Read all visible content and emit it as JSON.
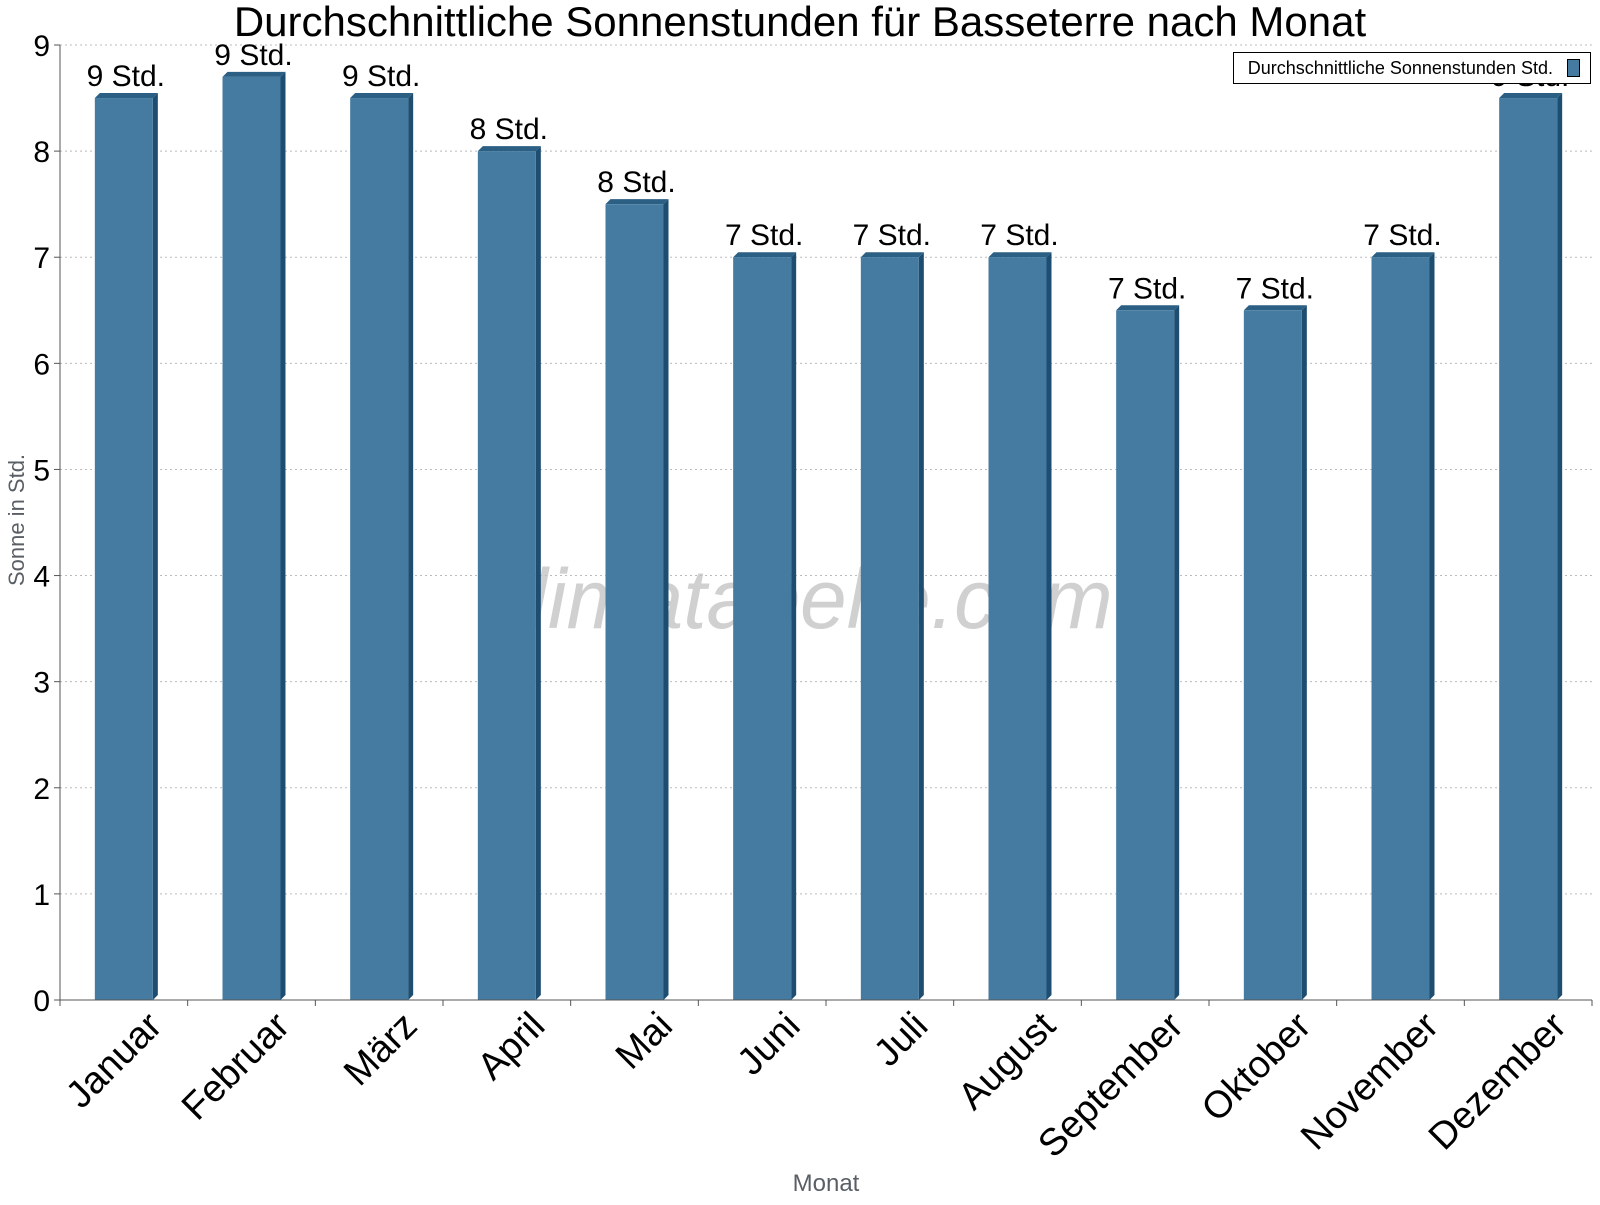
{
  "chart_data": {
    "type": "bar",
    "title": "Durchschnittliche Sonnenstunden für Basseterre nach Monat",
    "xlabel": "Monat",
    "ylabel": "Sonne in Std.",
    "categories": [
      "Januar",
      "Februar",
      "März",
      "April",
      "Mai",
      "Juni",
      "Juli",
      "August",
      "September",
      "Oktober",
      "November",
      "Dezember"
    ],
    "series": [
      {
        "name": "Durchschnittliche Sonnenstunden Std.",
        "values": [
          8.5,
          8.7,
          8.5,
          8.0,
          7.5,
          7.0,
          7.0,
          7.0,
          6.5,
          6.5,
          7.0,
          8.5
        ],
        "data_labels": [
          "9 Std.",
          "9 Std.",
          "9 Std.",
          "8 Std.",
          "8 Std.",
          "7 Std.",
          "7 Std.",
          "7 Std.",
          "7 Std.",
          "7 Std.",
          "7 Std.",
          "9 Std."
        ]
      }
    ],
    "ylim": [
      0,
      9
    ],
    "yticks": [
      0,
      1,
      2,
      3,
      4,
      5,
      6,
      7,
      8,
      9
    ],
    "grid": true,
    "legend_position": "top-right",
    "watermark": "klimatabelle.com",
    "colors": {
      "bar_front": "#457ba0",
      "bar_side": "#1d4d70",
      "bar_top": "#2b5f84",
      "grid": "#bbbbbb"
    }
  }
}
